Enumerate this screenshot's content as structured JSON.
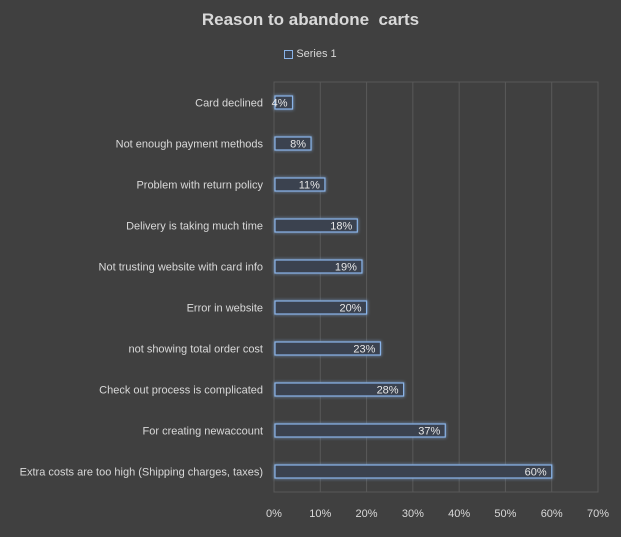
{
  "chart_data": {
    "type": "bar",
    "orientation": "horizontal",
    "title": "Reason to abandone  carts",
    "xlabel": "",
    "ylabel": "",
    "legend": {
      "position": "top",
      "entries": [
        "Series 1"
      ]
    },
    "categories": [
      "Card declined",
      "Not enough payment methods",
      "Problem with return policy",
      "Delivery is taking much time",
      "Not trusting website with card info",
      "Error in website",
      "not showing total order cost",
      "Check out process is complicated",
      "For creating newaccount",
      "Extra costs are too high (Shipping charges, taxes)"
    ],
    "series": [
      {
        "name": "Series 1",
        "values": [
          4,
          8,
          11,
          18,
          19,
          20,
          23,
          28,
          37,
          60
        ],
        "data_labels": [
          "4%",
          "8%",
          "11%",
          "18%",
          "19%",
          "20%",
          "23%",
          "28%",
          "37%",
          "60%"
        ]
      }
    ],
    "xlim": [
      0,
      70
    ],
    "x_ticks": [
      "0%",
      "10%",
      "20%",
      "30%",
      "40%",
      "50%",
      "60%",
      "70%"
    ],
    "grid": true,
    "colors": {
      "background": "#404040",
      "bar_fill": "#3a4250",
      "bar_stroke": "#8ab4e8",
      "grid": "#595959",
      "text": "#d9d9d9"
    }
  }
}
